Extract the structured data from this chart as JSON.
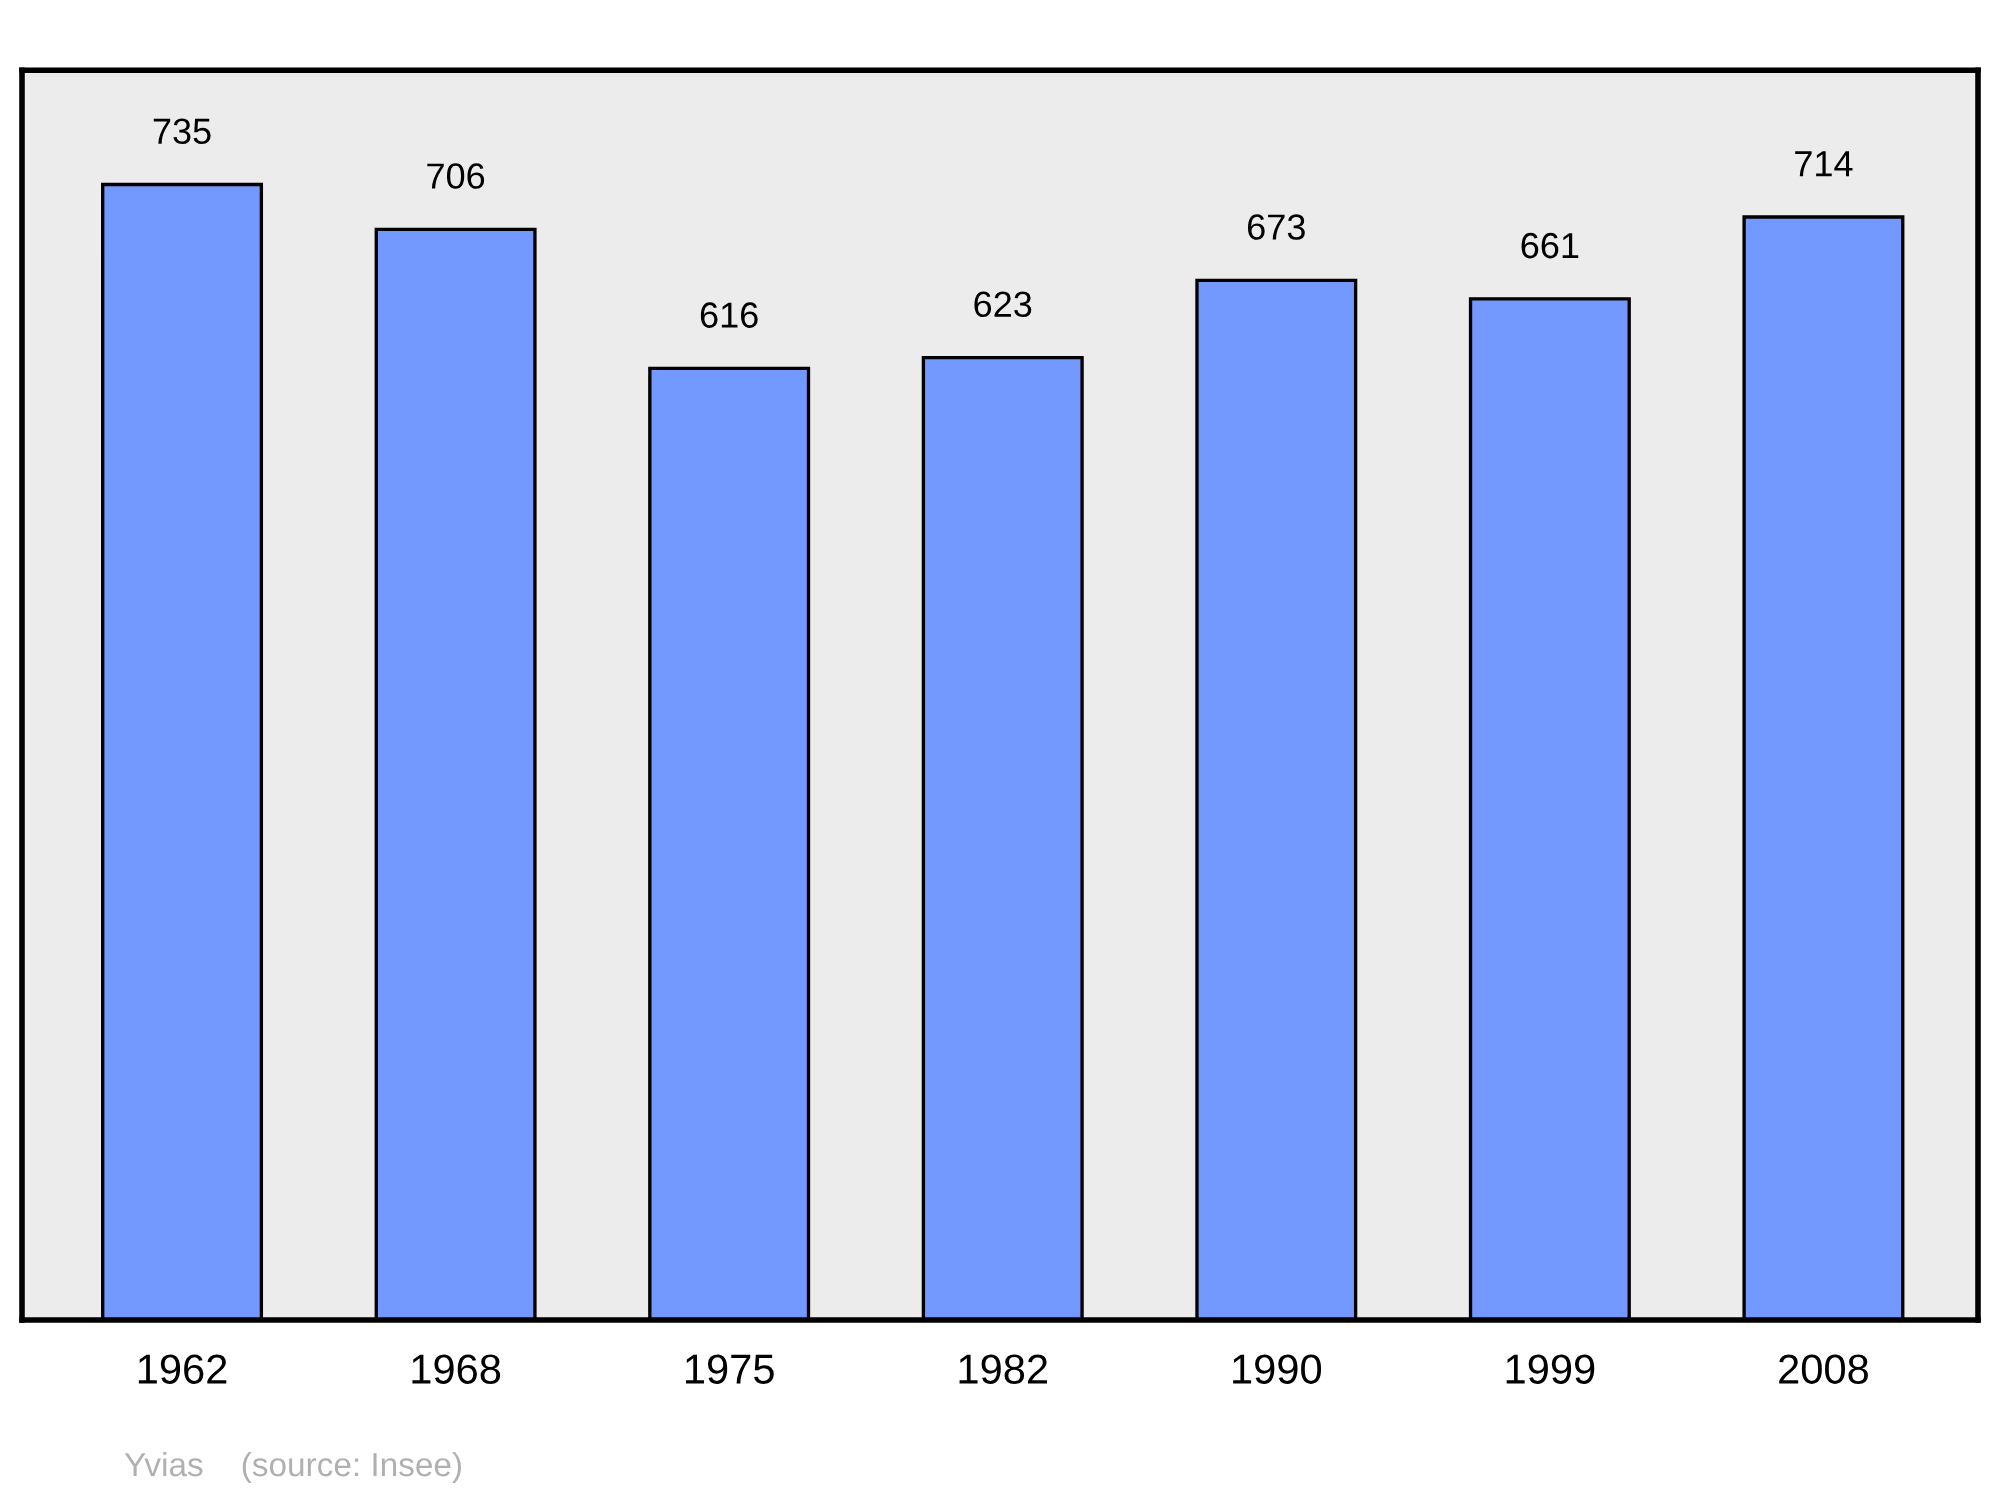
{
  "chart_data": {
    "type": "bar",
    "categories": [
      "1962",
      "1968",
      "1975",
      "1982",
      "1990",
      "1999",
      "2008"
    ],
    "values": [
      735,
      706,
      616,
      623,
      673,
      661,
      714
    ],
    "color": "#7399ff",
    "ylim": [
      0,
      809
    ],
    "tick_labels": "x",
    "data_labels": true,
    "grid": false,
    "legend": false,
    "annotations": [
      "Yvias    (source: Insee)"
    ]
  }
}
